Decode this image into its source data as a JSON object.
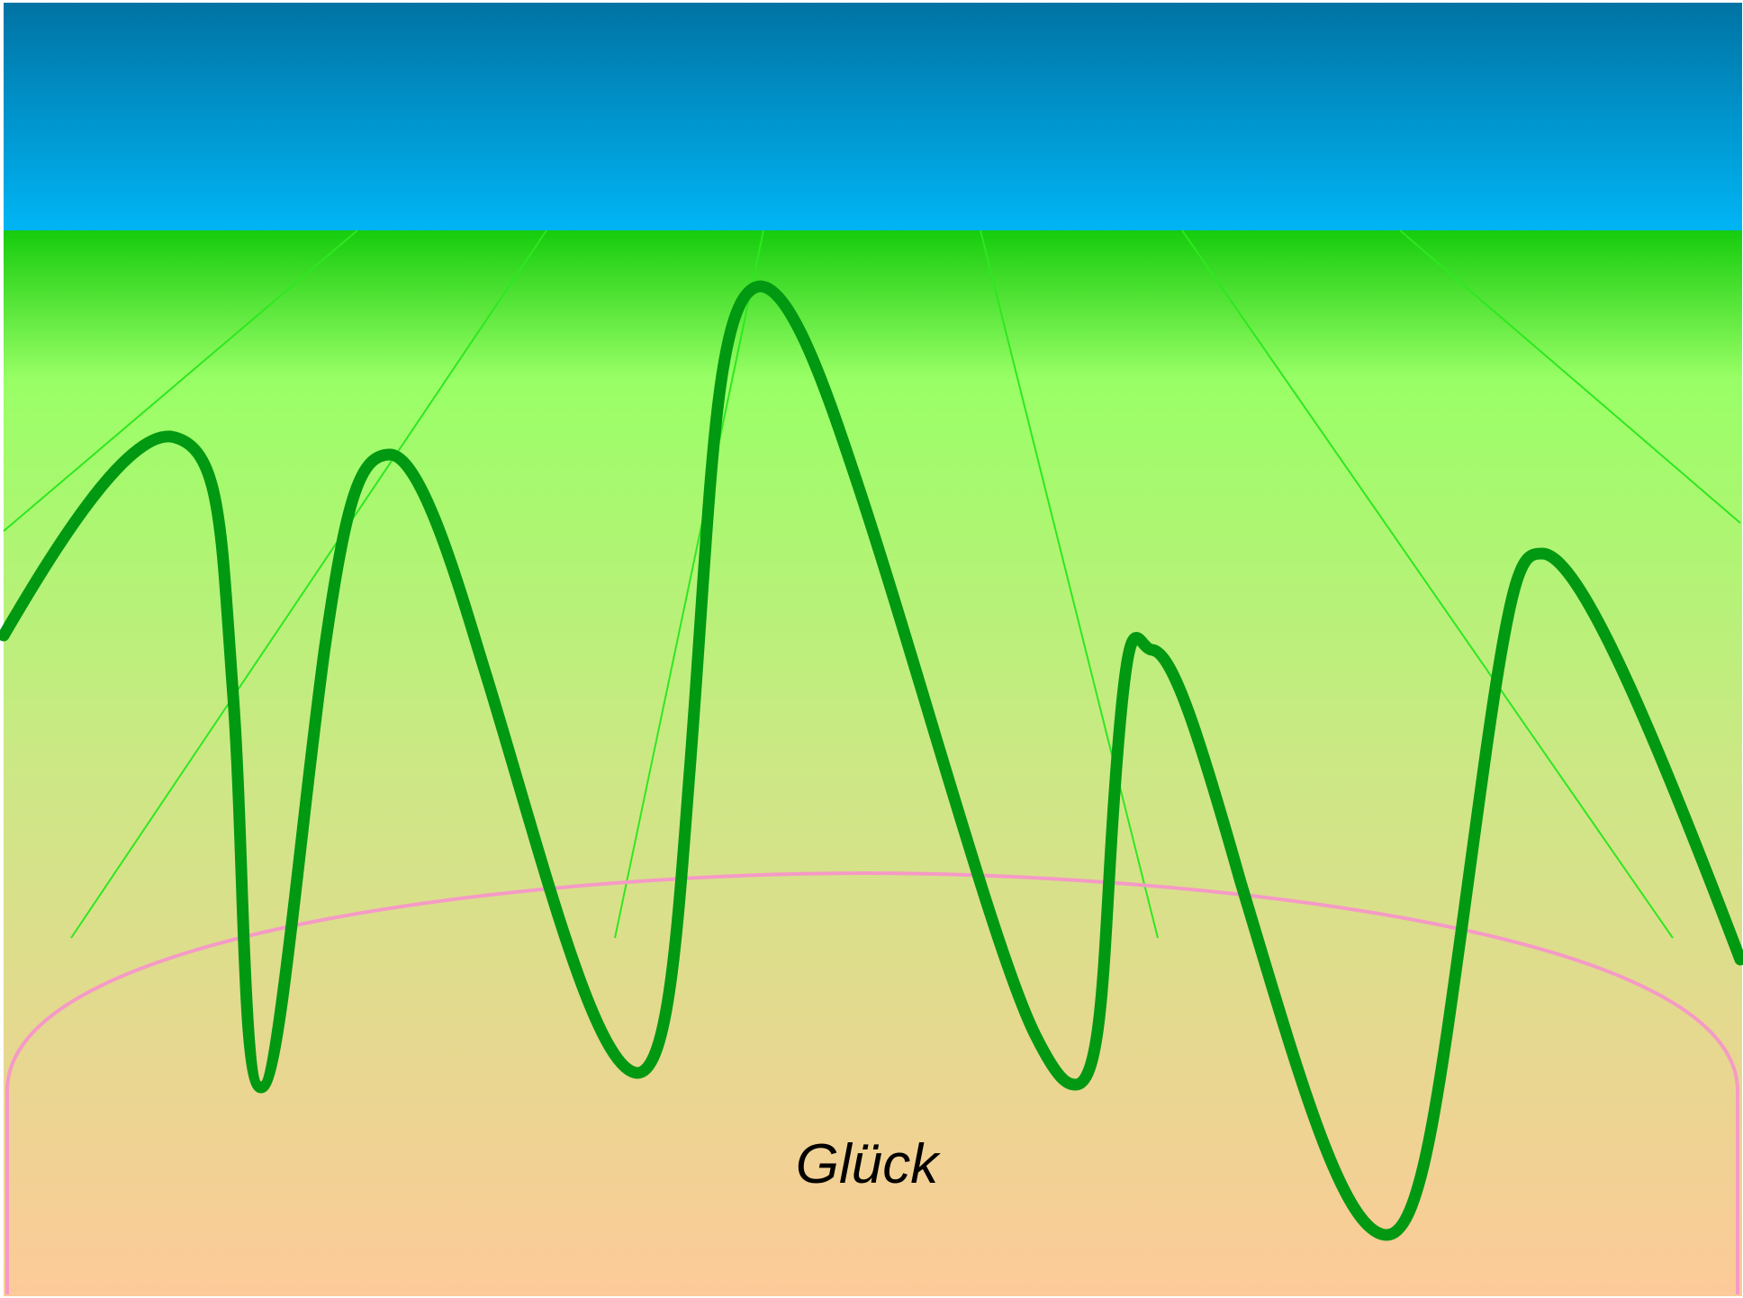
{
  "label": {
    "text": "Glück"
  },
  "colors": {
    "sky_top": "#0073a3",
    "sky_bottom": "#00b5f5",
    "grass_top": "#16cc0d",
    "grass_mid": "#99ff66",
    "grass_low": "#cce885",
    "ground_bottom": "#fdca99",
    "rays": "#2ee820",
    "wave": "#009911",
    "arc": "#f59ac6",
    "label": "#000000"
  }
}
